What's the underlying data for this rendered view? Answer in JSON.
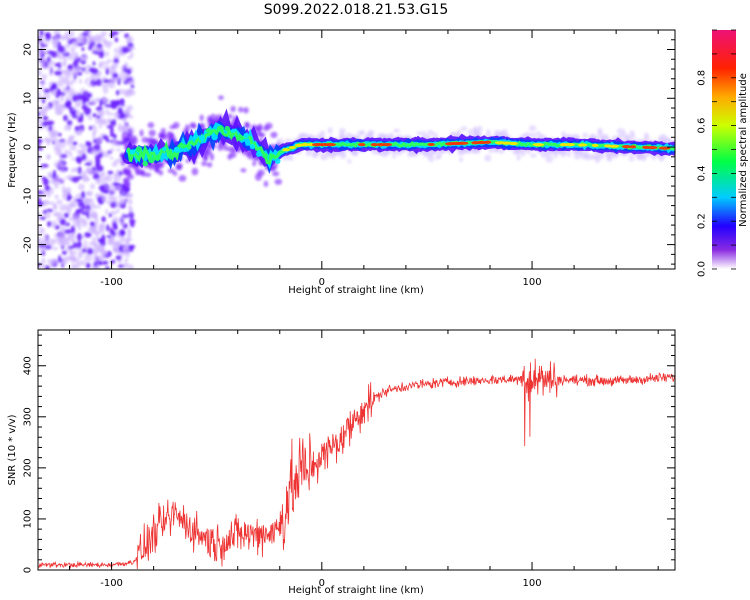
{
  "title": "S099.2022.018.21.53.G15",
  "chart_data": [
    {
      "type": "heatmap",
      "xlabel": "Height of straight line (km)",
      "ylabel": "Frequency (Hz)",
      "xlim": [
        -135,
        168
      ],
      "ylim": [
        -25,
        24
      ],
      "xticks": [
        -100,
        0,
        100
      ],
      "yticks": [
        -20,
        -10,
        0,
        10,
        20
      ],
      "colorbar": {
        "label": "Normalized spectral amplitude",
        "range": [
          0,
          1
        ],
        "ticks": [
          0.0,
          0.2,
          0.4,
          0.6,
          0.8
        ],
        "colormap": "rainbow"
      },
      "ridge": [
        {
          "x": -90,
          "f": -1.5
        },
        {
          "x": -80,
          "f": -1.5
        },
        {
          "x": -70,
          "f": -1.0
        },
        {
          "x": -60,
          "f": 1.0
        },
        {
          "x": -50,
          "f": 3.5
        },
        {
          "x": -40,
          "f": 2.5
        },
        {
          "x": -30,
          "f": 0.0
        },
        {
          "x": -25,
          "f": -2.5
        },
        {
          "x": -20,
          "f": -1.0
        },
        {
          "x": -10,
          "f": 0.5
        },
        {
          "x": 0,
          "f": 0.5
        },
        {
          "x": 20,
          "f": 0.5
        },
        {
          "x": 50,
          "f": 0.5
        },
        {
          "x": 80,
          "f": 1.0
        },
        {
          "x": 100,
          "f": 0.5
        },
        {
          "x": 120,
          "f": 0.5
        },
        {
          "x": 150,
          "f": 0.0
        },
        {
          "x": 168,
          "f": -0.3
        }
      ]
    },
    {
      "type": "line",
      "xlabel": "Height of straight line (km)",
      "ylabel": "SNR (10 * v/v)",
      "xlim": [
        -135,
        168
      ],
      "ylim": [
        0,
        470
      ],
      "xticks": [
        -100,
        0,
        100
      ],
      "yticks": [
        0,
        100,
        200,
        300,
        400
      ],
      "color": "#ee3333",
      "series": [
        {
          "values_profile": [
            {
              "x": -135,
              "y": 10
            },
            {
              "x": -100,
              "y": 10
            },
            {
              "x": -90,
              "y": 15
            },
            {
              "x": -85,
              "y": 40
            },
            {
              "x": -78,
              "y": 80
            },
            {
              "x": -70,
              "y": 110
            },
            {
              "x": -60,
              "y": 75
            },
            {
              "x": -50,
              "y": 50
            },
            {
              "x": -40,
              "y": 70
            },
            {
              "x": -30,
              "y": 70
            },
            {
              "x": -20,
              "y": 80
            },
            {
              "x": -15,
              "y": 160
            },
            {
              "x": -10,
              "y": 190
            },
            {
              "x": 0,
              "y": 220
            },
            {
              "x": 10,
              "y": 260
            },
            {
              "x": 20,
              "y": 320
            },
            {
              "x": 30,
              "y": 350
            },
            {
              "x": 40,
              "y": 360
            },
            {
              "x": 60,
              "y": 368
            },
            {
              "x": 80,
              "y": 372
            },
            {
              "x": 100,
              "y": 375
            },
            {
              "x": 120,
              "y": 372
            },
            {
              "x": 140,
              "y": 370
            },
            {
              "x": 168,
              "y": 378
            }
          ]
        }
      ]
    }
  ]
}
